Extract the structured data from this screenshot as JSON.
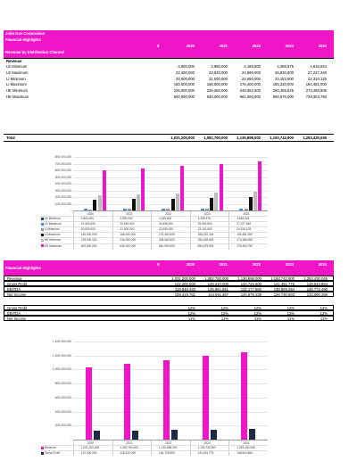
{
  "header": {
    "company": "John Doe Corporation",
    "title": "Financial Highlights",
    "subtitle": "Revenue by Distribution Channel",
    "currency": "$",
    "years": [
      "2020",
      "2021",
      "2022",
      "2023",
      "2024"
    ]
  },
  "revenue_section": {
    "label": "Revenue",
    "rows": [
      {
        "label": "LE Minimum",
        "values": [
          "3,800,000",
          "3,990,000",
          "4,189,500",
          "4,398,975",
          "4,618,924"
        ]
      },
      {
        "label": "LE Maximum",
        "values": [
          "22,400,000",
          "23,520,000",
          "24,696,000",
          "25,930,800",
          "27,227,340"
        ]
      },
      {
        "label": "LI Minimum",
        "values": [
          "20,000,000",
          "21,000,000",
          "22,050,000",
          "23,152,500",
          "24,310,125"
        ]
      },
      {
        "label": "LI Maximum",
        "values": [
          "160,000,000",
          "168,000,000",
          "176,400,000",
          "185,220,000",
          "194,481,000"
        ]
      },
      {
        "label": "HE Minimum",
        "values": [
          "225,000,000",
          "236,250,000",
          "248,062,500",
          "260,465,625",
          "273,488,906"
        ]
      },
      {
        "label": "HE Maximum",
        "values": [
          "600,000,000",
          "630,000,000",
          "661,500,000",
          "694,575,000",
          "729,303,750"
        ]
      }
    ],
    "total_label": "Total",
    "totals": [
      "1,031,200,000",
      "1,082,760,000",
      "1,136,898,000",
      "1,193,742,900",
      "1,253,430,045"
    ]
  },
  "chart1": {
    "ticks": [
      "800,000,000",
      "700,000,000",
      "600,000,000",
      "500,000,000",
      "400,000,000",
      "300,000,000",
      "200,000,000",
      "100,000,000",
      "-"
    ]
  },
  "financial_section": {
    "title": "Financial Highlights",
    "currency": "$",
    "years": [
      "2020",
      "2021",
      "2022",
      "2023",
      "2024"
    ],
    "rows": [
      {
        "label": "Revenue",
        "values": [
          "1,031,200,000",
          "1,082,760,000",
          "1,136,898,000",
          "1,193,742,900",
          "1,253,430,045"
        ]
      },
      {
        "label": "Gross Profit",
        "values": [
          "122,200,000",
          "128,310,000",
          "134,725,500",
          "141,461,775",
          "148,534,864"
        ]
      },
      {
        "label": "EBITDA",
        "values": [
          "119,848,420",
          "125,861,651",
          "132,177,582",
          "138,809,284",
          "145,772,490"
        ]
      },
      {
        "label": "Net Income",
        "values": [
          "109,419,781",
          "114,911,467",
          "120,676,139",
          "126,730,503",
          "133,090,256"
        ]
      }
    ],
    "margin_rows": [
      {
        "label": "Gross Profit",
        "values": [
          "12%",
          "12%",
          "12%",
          "12%",
          "12%"
        ]
      },
      {
        "label": "EBITDA",
        "values": [
          "12%",
          "12%",
          "12%",
          "12%",
          "12%"
        ]
      },
      {
        "label": "Net Income",
        "values": [
          "11%",
          "11%",
          "11%",
          "11%",
          "11%"
        ]
      }
    ]
  },
  "chart2": {
    "ticks": [
      "1,400,000,000",
      "1,200,000,000",
      "1,000,000,000",
      "800,000,000",
      "600,000,000",
      "400,000,000",
      "200,000,000",
      "-"
    ]
  },
  "chart_data": [
    {
      "type": "bar",
      "categories": [
        "2020",
        "2021",
        "2022",
        "2023",
        "2024"
      ],
      "ylim": [
        0,
        800000000
      ],
      "grid": true,
      "series": [
        {
          "name": "LE Minimum",
          "color": "#1f3f7a",
          "values": [
            3800000,
            3990000,
            4189500,
            4398975,
            4618924
          ]
        },
        {
          "name": "LE Maximum",
          "color": "#4a90d9",
          "values": [
            22400000,
            23520000,
            24696000,
            25930800,
            27227340
          ]
        },
        {
          "name": "LI Minimum",
          "color": "#9a9a9a",
          "values": [
            20000000,
            21000000,
            22050000,
            23152500,
            24310125
          ]
        },
        {
          "name": "LI Maximum",
          "color": "#111111",
          "values": [
            160000000,
            168000000,
            176400000,
            185220000,
            194481000
          ]
        },
        {
          "name": "HE Minimum",
          "color": "#bcbcbc",
          "values": [
            225000000,
            236250000,
            248062500,
            260465625,
            273488906
          ]
        },
        {
          "name": "HE Maximum",
          "color": "#f016c8",
          "values": [
            600000000,
            630000000,
            661500000,
            694575000,
            729303750
          ]
        }
      ],
      "table_values": [
        [
          "3,800,000",
          "3,990,000",
          "4,189,500",
          "4,398,975",
          "4,618,924"
        ],
        [
          "22,400,000",
          "23,520,000",
          "24,696,000",
          "25,930,800",
          "27,227,340"
        ],
        [
          "20,000,000",
          "21,000,000",
          "22,050,000",
          "23,152,500",
          "24,310,125"
        ],
        [
          "160,000,000",
          "168,000,000",
          "176,400,000",
          "185,220,000",
          "194,481,000"
        ],
        [
          "225,000,000",
          "236,250,000",
          "248,062,500",
          "260,465,625",
          "273,488,906"
        ],
        [
          "600,000,000",
          "630,000,000",
          "661,500,000",
          "694,575,000",
          "729,303,750"
        ]
      ]
    },
    {
      "type": "bar",
      "categories": [
        "2020",
        "2021",
        "2022",
        "2023",
        "2024"
      ],
      "ylim": [
        0,
        1400000000
      ],
      "grid": true,
      "series": [
        {
          "name": "Revenue",
          "color": "#f016c8",
          "values": [
            1031200000,
            1082760000,
            1136898000,
            1193742900,
            1253430045
          ]
        },
        {
          "name": "Gross Profit",
          "color": "#1f2a44",
          "values": [
            122200000,
            128310000,
            134725500,
            141461775,
            148534864
          ]
        }
      ],
      "table_values": [
        [
          "1,031,200,000",
          "1,082,760,000",
          "1,136,898,000",
          "1,193,742,900",
          "1,253,430,045"
        ],
        [
          "122,200,000",
          "128,310,000",
          "134,725,500",
          "141,461,775",
          "148,534,864"
        ]
      ]
    }
  ]
}
